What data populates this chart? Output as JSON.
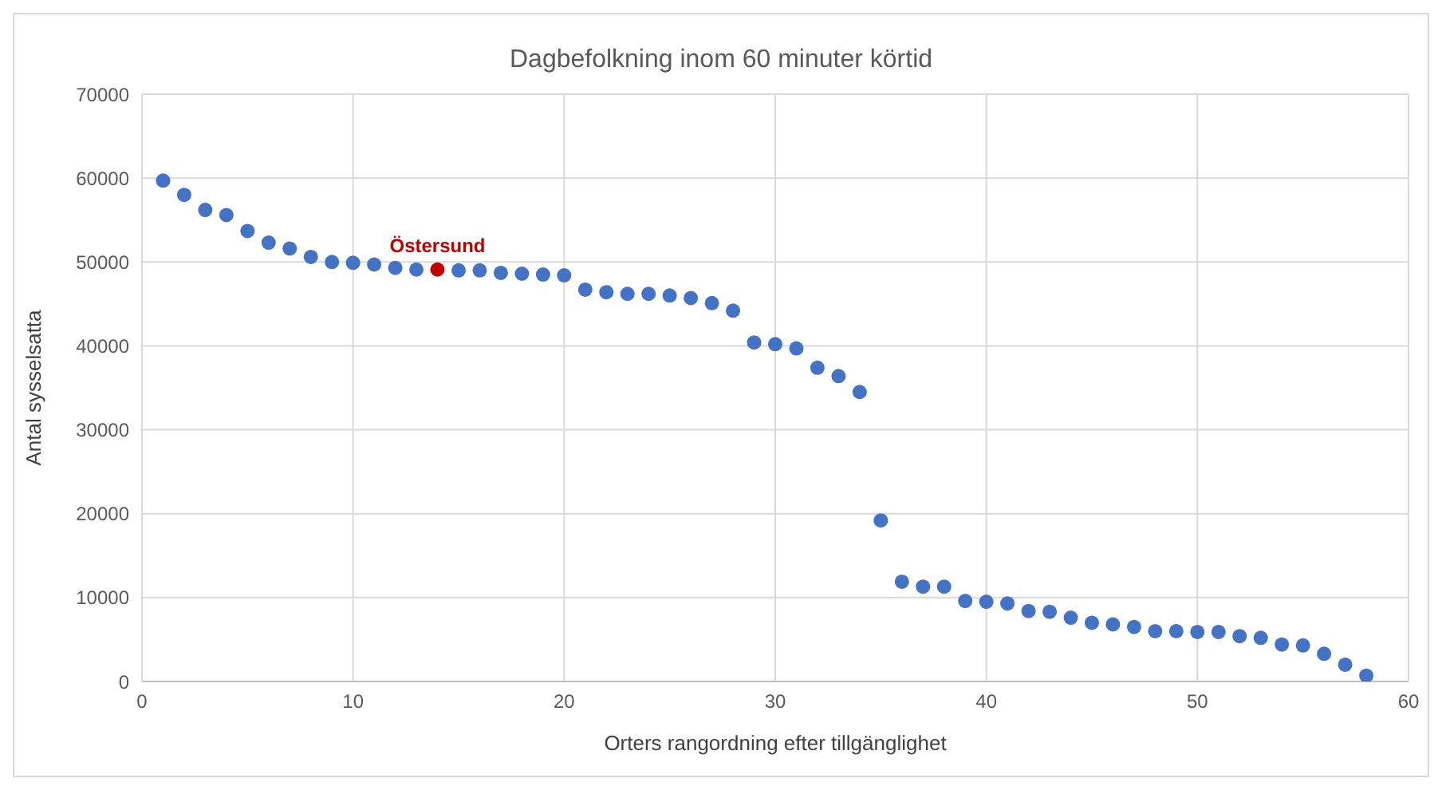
{
  "chart_data": {
    "type": "scatter",
    "title": "Dagbefolkning inom 60 minuter körtid",
    "xlabel": "Orters rangordning efter tillgänglighet",
    "ylabel": "Antal sysselsatta",
    "series": [
      {
        "color": "#4472c4",
        "x": [
          1,
          2,
          3,
          4,
          5,
          6,
          7,
          8,
          9,
          10,
          11,
          12,
          13,
          14,
          15,
          16,
          17,
          18,
          19,
          20,
          21,
          22,
          23,
          24,
          25,
          26,
          27,
          28,
          29,
          30,
          31,
          32,
          33,
          34,
          35,
          36,
          37,
          38,
          39,
          40,
          41,
          42,
          43,
          44,
          45,
          46,
          47,
          48,
          49,
          50,
          51,
          52,
          53,
          54,
          55,
          56,
          57,
          58
        ],
        "values": [
          59700,
          58000,
          56200,
          55600,
          53700,
          52300,
          51600,
          50600,
          50000,
          49900,
          49700,
          49300,
          49100,
          null,
          49000,
          49000,
          48700,
          48600,
          48500,
          48400,
          46700,
          46400,
          46200,
          46200,
          46000,
          45700,
          45100,
          44200,
          40400,
          40200,
          39700,
          37400,
          36400,
          34500,
          19200,
          11900,
          11300,
          11300,
          9600,
          9500,
          9300,
          8400,
          8300,
          7600,
          7000,
          6800,
          6500,
          6000,
          6000,
          5900,
          5900,
          5400,
          5200,
          4400,
          4300,
          3300,
          2000,
          700
        ]
      },
      {
        "color": "#c00000",
        "x": [
          14
        ],
        "values": [
          49100
        ]
      }
    ],
    "annotations": [
      {
        "text": "Östersund",
        "x": 14,
        "y": 49100
      }
    ],
    "xlim": [
      0,
      60
    ],
    "xticks": [
      0,
      10,
      20,
      30,
      40,
      50,
      60
    ],
    "ylim": [
      0,
      70000
    ],
    "yticks": [
      0,
      10000,
      20000,
      30000,
      40000,
      50000,
      60000,
      70000
    ],
    "grid": true,
    "marker": "circle",
    "legend": false
  }
}
